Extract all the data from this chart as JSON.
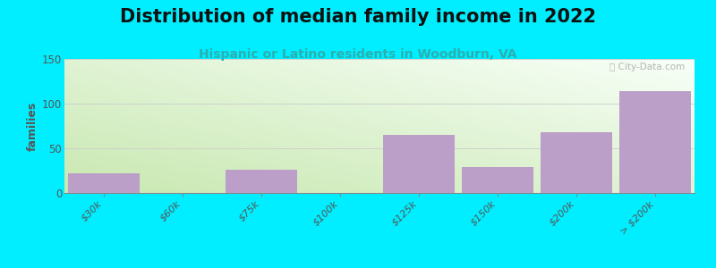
{
  "title": "Distribution of median family income in 2022",
  "subtitle": "Hispanic or Latino residents in Woodburn, VA",
  "categories": [
    "$30k",
    "$60k",
    "$75k",
    "$100k",
    "$125k",
    "$150k",
    "$200k",
    "> $200k"
  ],
  "values": [
    22,
    0,
    26,
    0,
    65,
    29,
    68,
    114
  ],
  "bar_color": "#bb9fc8",
  "ylim": [
    0,
    150
  ],
  "yticks": [
    0,
    50,
    100,
    150
  ],
  "ylabel": "families",
  "fig_bg": "#00eeff",
  "watermark": "ⓘ City-Data.com",
  "title_fontsize": 15,
  "subtitle_fontsize": 10,
  "ylabel_fontsize": 9,
  "grad_bottom_left": "#b8d8a0",
  "grad_top_right": "#f8fff8",
  "subtitle_color": "#2ab0b0"
}
